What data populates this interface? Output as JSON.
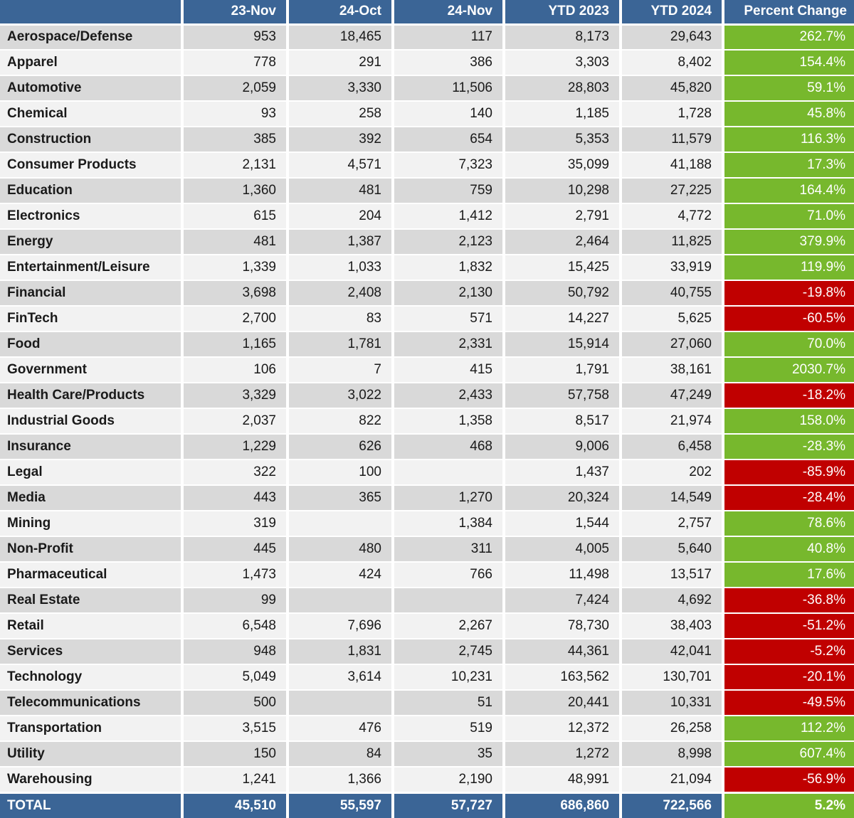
{
  "colors": {
    "header_blue": "#3b6596",
    "row_stripe_gray": "#d9d9d9",
    "row_stripe_light": "#f2f2f2",
    "positive_green": "#77b82d",
    "negative_red": "#c00000",
    "text_dark": "#1a1a1a",
    "separator_white": "#ffffff"
  },
  "chart_data": {
    "type": "table",
    "title": "Industry activity by month with YTD comparison and percent change",
    "columns": [
      "",
      "23-Nov",
      "24-Oct",
      "24-Nov",
      "YTD 2023",
      "YTD 2024",
      "Percent Change"
    ],
    "rows": [
      {
        "industry": "Aerospace/Defense",
        "values": [
          "953",
          "18,465",
          "117",
          "8,173",
          "29,643"
        ],
        "percent_change": "262.7%",
        "highlight": "green"
      },
      {
        "industry": "Apparel",
        "values": [
          "778",
          "291",
          "386",
          "3,303",
          "8,402"
        ],
        "percent_change": "154.4%",
        "highlight": "green"
      },
      {
        "industry": "Automotive",
        "values": [
          "2,059",
          "3,330",
          "11,506",
          "28,803",
          "45,820"
        ],
        "percent_change": "59.1%",
        "highlight": "green"
      },
      {
        "industry": "Chemical",
        "values": [
          "93",
          "258",
          "140",
          "1,185",
          "1,728"
        ],
        "percent_change": "45.8%",
        "highlight": "green"
      },
      {
        "industry": "Construction",
        "values": [
          "385",
          "392",
          "654",
          "5,353",
          "11,579"
        ],
        "percent_change": "116.3%",
        "highlight": "green"
      },
      {
        "industry": "Consumer Products",
        "values": [
          "2,131",
          "4,571",
          "7,323",
          "35,099",
          "41,188"
        ],
        "percent_change": "17.3%",
        "highlight": "green"
      },
      {
        "industry": "Education",
        "values": [
          "1,360",
          "481",
          "759",
          "10,298",
          "27,225"
        ],
        "percent_change": "164.4%",
        "highlight": "green"
      },
      {
        "industry": "Electronics",
        "values": [
          "615",
          "204",
          "1,412",
          "2,791",
          "4,772"
        ],
        "percent_change": "71.0%",
        "highlight": "green"
      },
      {
        "industry": "Energy",
        "values": [
          "481",
          "1,387",
          "2,123",
          "2,464",
          "11,825"
        ],
        "percent_change": "379.9%",
        "highlight": "green"
      },
      {
        "industry": "Entertainment/Leisure",
        "values": [
          "1,339",
          "1,033",
          "1,832",
          "15,425",
          "33,919"
        ],
        "percent_change": "119.9%",
        "highlight": "green"
      },
      {
        "industry": "Financial",
        "values": [
          "3,698",
          "2,408",
          "2,130",
          "50,792",
          "40,755"
        ],
        "percent_change": "-19.8%",
        "highlight": "red"
      },
      {
        "industry": "FinTech",
        "values": [
          "2,700",
          "83",
          "571",
          "14,227",
          "5,625"
        ],
        "percent_change": "-60.5%",
        "highlight": "red"
      },
      {
        "industry": "Food",
        "values": [
          "1,165",
          "1,781",
          "2,331",
          "15,914",
          "27,060"
        ],
        "percent_change": "70.0%",
        "highlight": "green"
      },
      {
        "industry": "Government",
        "values": [
          "106",
          "7",
          "415",
          "1,791",
          "38,161"
        ],
        "percent_change": "2030.7%",
        "highlight": "green"
      },
      {
        "industry": "Health Care/Products",
        "values": [
          "3,329",
          "3,022",
          "2,433",
          "57,758",
          "47,249"
        ],
        "percent_change": "-18.2%",
        "highlight": "red"
      },
      {
        "industry": "Industrial Goods",
        "values": [
          "2,037",
          "822",
          "1,358",
          "8,517",
          "21,974"
        ],
        "percent_change": "158.0%",
        "highlight": "green"
      },
      {
        "industry": "Insurance",
        "values": [
          "1,229",
          "626",
          "468",
          "9,006",
          "6,458"
        ],
        "percent_change": "-28.3%",
        "highlight": "green"
      },
      {
        "industry": "Legal",
        "values": [
          "322",
          "100",
          "",
          "1,437",
          "202"
        ],
        "percent_change": "-85.9%",
        "highlight": "red"
      },
      {
        "industry": "Media",
        "values": [
          "443",
          "365",
          "1,270",
          "20,324",
          "14,549"
        ],
        "percent_change": "-28.4%",
        "highlight": "red"
      },
      {
        "industry": "Mining",
        "values": [
          "319",
          "",
          "1,384",
          "1,544",
          "2,757"
        ],
        "percent_change": "78.6%",
        "highlight": "green"
      },
      {
        "industry": "Non-Profit",
        "values": [
          "445",
          "480",
          "311",
          "4,005",
          "5,640"
        ],
        "percent_change": "40.8%",
        "highlight": "green"
      },
      {
        "industry": "Pharmaceutical",
        "values": [
          "1,473",
          "424",
          "766",
          "11,498",
          "13,517"
        ],
        "percent_change": "17.6%",
        "highlight": "green"
      },
      {
        "industry": "Real Estate",
        "values": [
          "99",
          "",
          "",
          "7,424",
          "4,692"
        ],
        "percent_change": "-36.8%",
        "highlight": "red"
      },
      {
        "industry": "Retail",
        "values": [
          "6,548",
          "7,696",
          "2,267",
          "78,730",
          "38,403"
        ],
        "percent_change": "-51.2%",
        "highlight": "red"
      },
      {
        "industry": "Services",
        "values": [
          "948",
          "1,831",
          "2,745",
          "44,361",
          "42,041"
        ],
        "percent_change": "-5.2%",
        "highlight": "red"
      },
      {
        "industry": "Technology",
        "values": [
          "5,049",
          "3,614",
          "10,231",
          "163,562",
          "130,701"
        ],
        "percent_change": "-20.1%",
        "highlight": "red"
      },
      {
        "industry": "Telecommunications",
        "values": [
          "500",
          "",
          "51",
          "20,441",
          "10,331"
        ],
        "percent_change": "-49.5%",
        "highlight": "red"
      },
      {
        "industry": "Transportation",
        "values": [
          "3,515",
          "476",
          "519",
          "12,372",
          "26,258"
        ],
        "percent_change": "112.2%",
        "highlight": "green"
      },
      {
        "industry": "Utility",
        "values": [
          "150",
          "84",
          "35",
          "1,272",
          "8,998"
        ],
        "percent_change": "607.4%",
        "highlight": "green"
      },
      {
        "industry": "Warehousing",
        "values": [
          "1,241",
          "1,366",
          "2,190",
          "48,991",
          "21,094"
        ],
        "percent_change": "-56.9%",
        "highlight": "red"
      }
    ],
    "total": {
      "label": "TOTAL",
      "values": [
        "45,510",
        "55,597",
        "57,727",
        "686,860",
        "722,566"
      ],
      "percent_change": "5.2%",
      "highlight": "green"
    }
  }
}
